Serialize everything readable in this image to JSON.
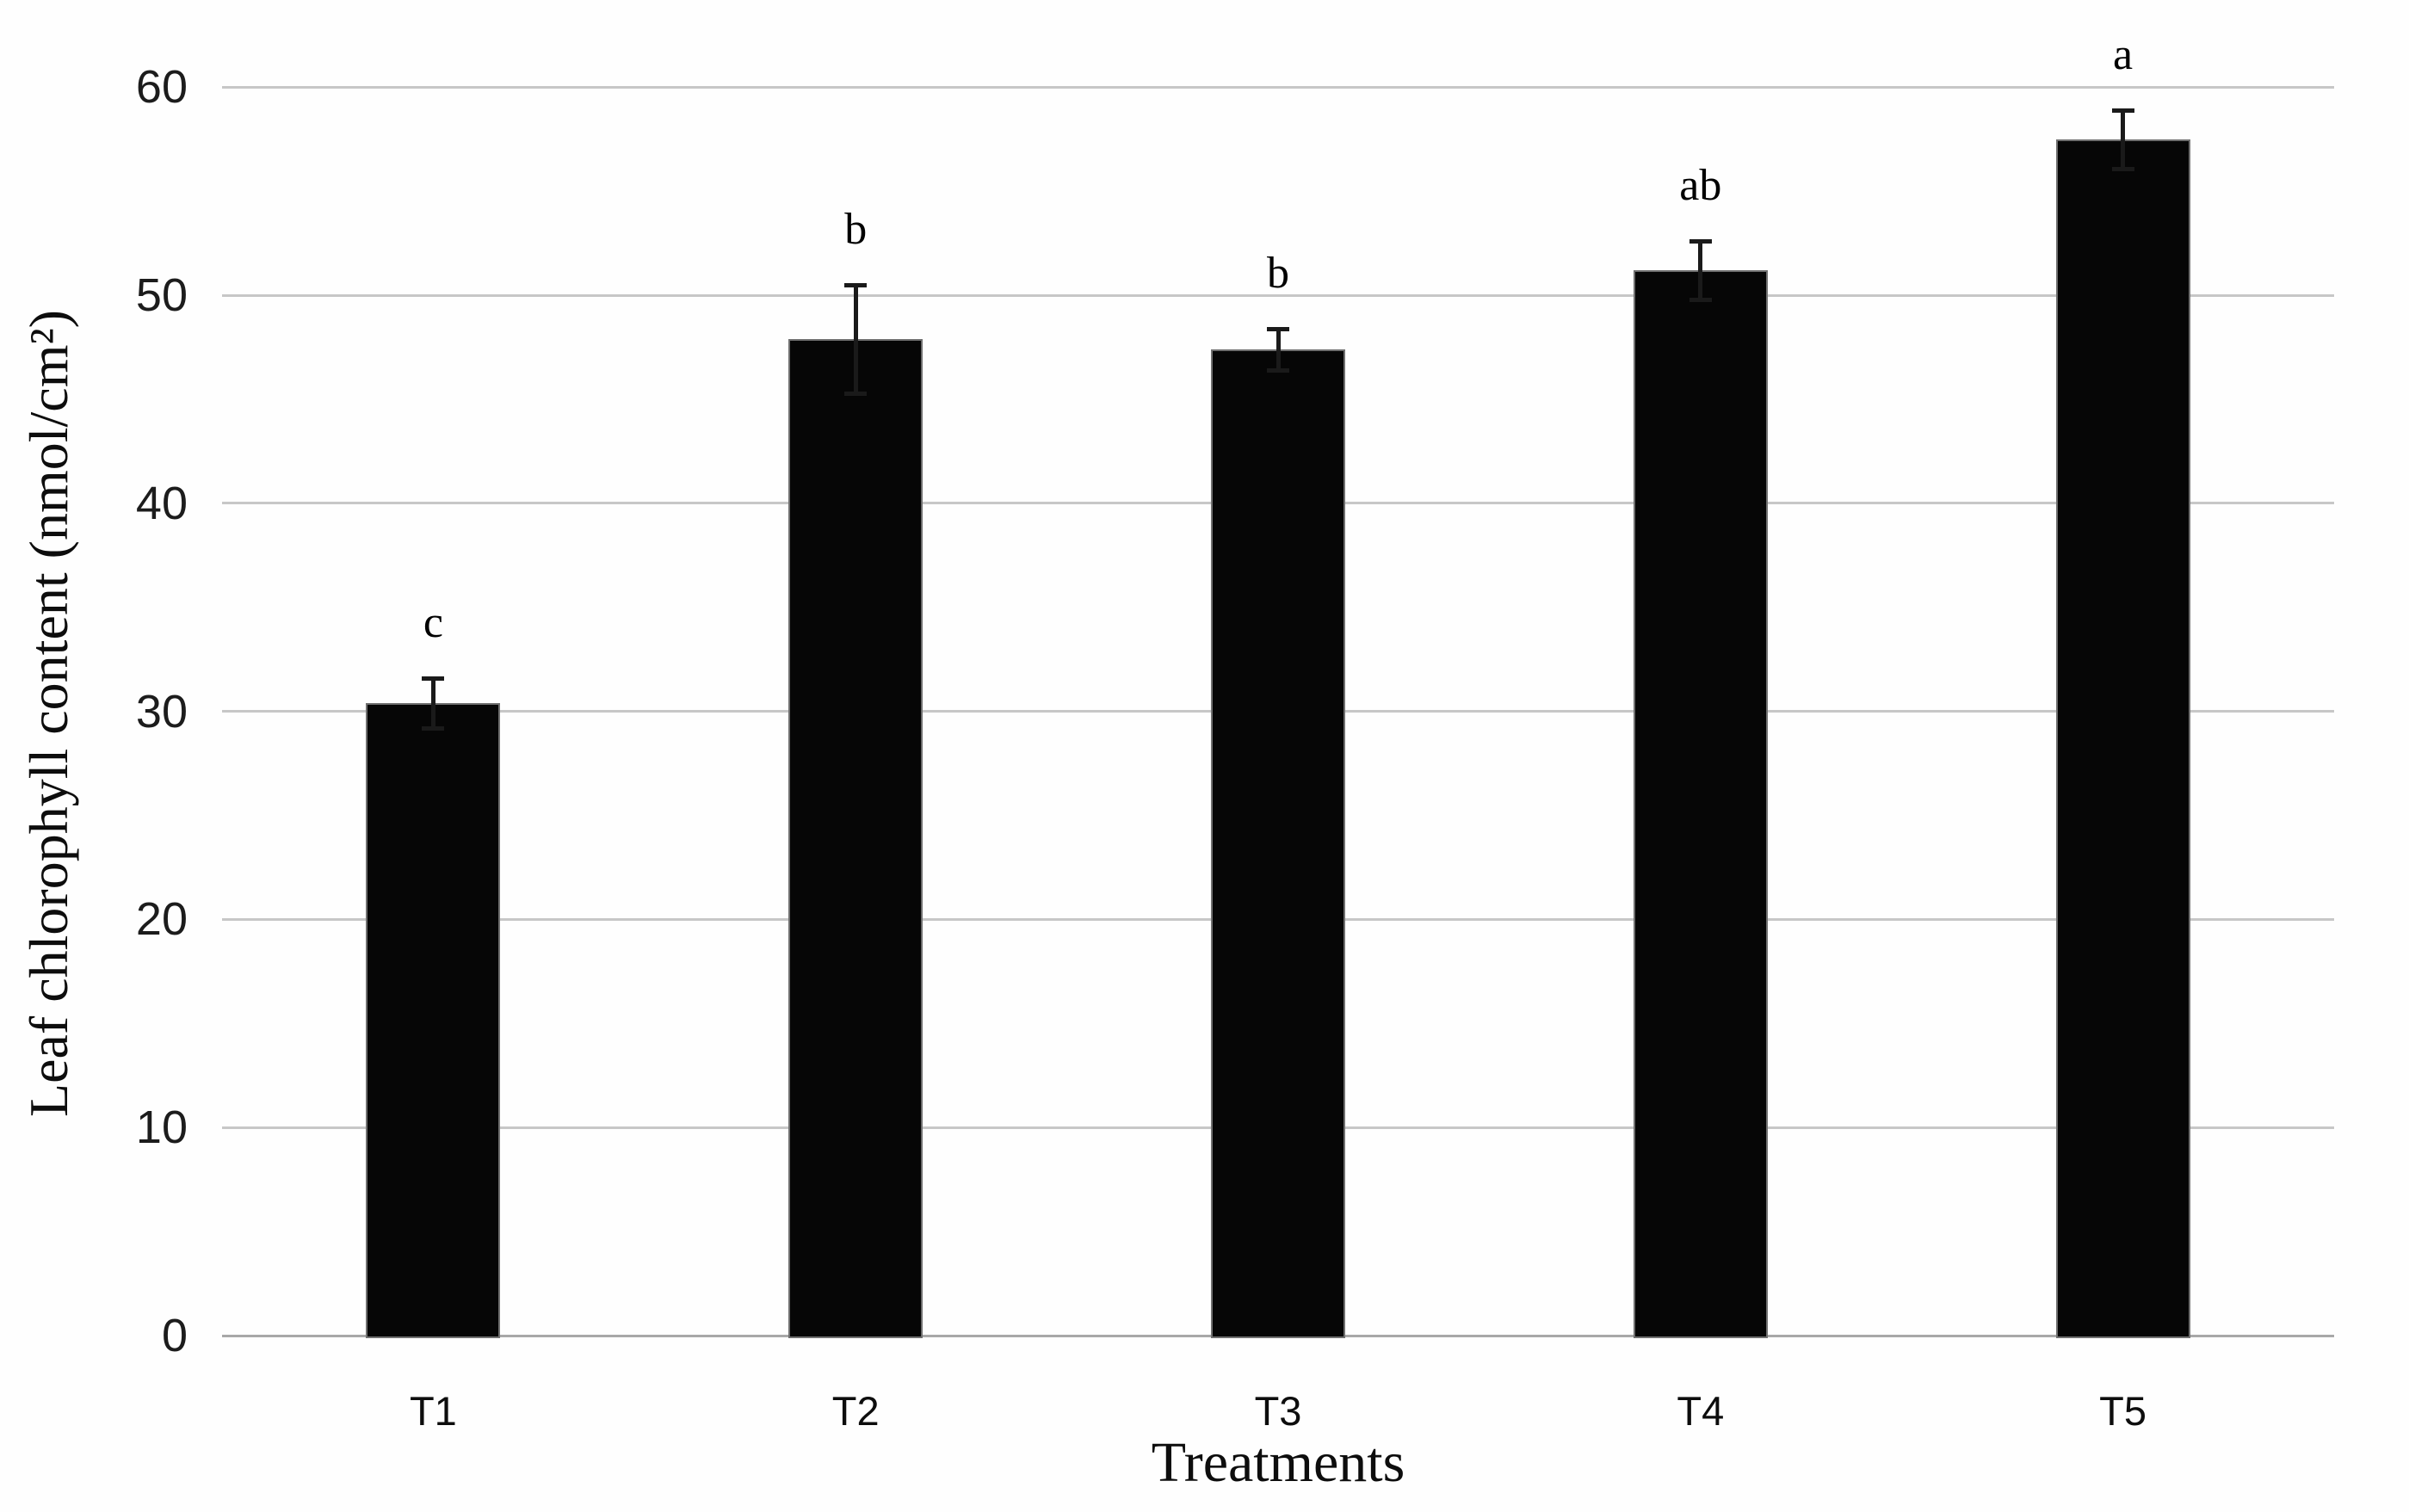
{
  "figure": {
    "background_color": "#fefefe"
  },
  "chart_data": {
    "type": "bar",
    "title": "",
    "categories": [
      "T1",
      "T2",
      "T3",
      "T4",
      "T5"
    ],
    "series": [
      {
        "name": "Leaf chlorophyll content",
        "values": [
          30.4,
          47.9,
          47.4,
          51.2,
          57.5
        ],
        "errors": [
          1.2,
          2.6,
          1.0,
          1.4,
          1.4
        ],
        "sig_letters": [
          "c",
          "b",
          "b",
          "ab",
          "a"
        ]
      }
    ],
    "xlabel": "Treatments",
    "ylabel": "Leaf chlorophyll content (nmol/cm²)",
    "ylim": [
      0,
      60
    ],
    "yticks": [
      0,
      10,
      20,
      30,
      40,
      50,
      60
    ],
    "grid": "horizontal",
    "legend_position": "none",
    "bar_color": "#060606",
    "bar_border_color": "#6f6f6f",
    "gridline_color": "#c7c7c7",
    "axis_line_color": "#a8a8a8",
    "error_bar_color": "#1a1a1a",
    "text_color": "#1c1c1c"
  }
}
